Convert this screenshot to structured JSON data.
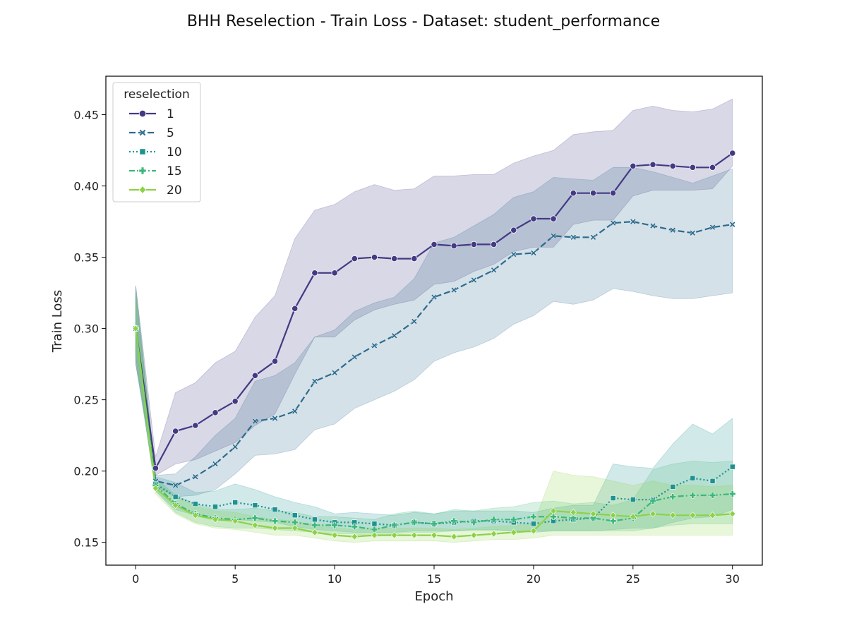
{
  "chart_data": {
    "type": "line",
    "title": "BHH Reselection - Train Loss - Dataset: student_performance",
    "xlabel": "Epoch",
    "ylabel": "Train Loss",
    "xlim": [
      -1.5,
      31.5
    ],
    "ylim": [
      0.134,
      0.477
    ],
    "x_ticks": [
      "0",
      "5",
      "10",
      "15",
      "20",
      "25",
      "30"
    ],
    "y_ticks": [
      "0.15",
      "0.20",
      "0.25",
      "0.30",
      "0.35",
      "0.40",
      "0.45"
    ],
    "grid": false,
    "legend": {
      "title": "reselection",
      "placement": "top-left"
    },
    "x": [
      0,
      1,
      2,
      3,
      4,
      5,
      6,
      7,
      8,
      9,
      10,
      11,
      12,
      13,
      14,
      15,
      16,
      17,
      18,
      19,
      20,
      21,
      22,
      23,
      24,
      25,
      26,
      27,
      28,
      29,
      30
    ],
    "series": [
      {
        "name": "1",
        "color": "#433a83",
        "marker": "circle",
        "dash": "solid",
        "values": [
          0.3,
          0.202,
          0.228,
          0.232,
          0.241,
          0.249,
          0.267,
          0.277,
          0.314,
          0.339,
          0.339,
          0.349,
          0.35,
          0.349,
          0.349,
          0.359,
          0.358,
          0.359,
          0.359,
          0.369,
          0.377,
          0.377,
          0.395,
          0.395,
          0.395,
          0.414,
          0.415,
          0.414,
          0.413,
          0.413,
          0.423
        ],
        "lower": [
          0.275,
          0.197,
          0.205,
          0.208,
          0.214,
          0.22,
          0.232,
          0.24,
          0.268,
          0.294,
          0.294,
          0.306,
          0.313,
          0.317,
          0.32,
          0.331,
          0.333,
          0.34,
          0.345,
          0.354,
          0.357,
          0.357,
          0.373,
          0.376,
          0.376,
          0.393,
          0.397,
          0.397,
          0.397,
          0.398,
          0.414
        ],
        "upper": [
          0.33,
          0.21,
          0.255,
          0.262,
          0.276,
          0.284,
          0.308,
          0.323,
          0.363,
          0.383,
          0.387,
          0.396,
          0.401,
          0.397,
          0.398,
          0.407,
          0.407,
          0.408,
          0.408,
          0.416,
          0.421,
          0.425,
          0.436,
          0.438,
          0.439,
          0.453,
          0.456,
          0.453,
          0.452,
          0.454,
          0.461
        ]
      },
      {
        "name": "5",
        "color": "#2c6b8e",
        "marker": "x",
        "dash": "dashed",
        "values": [
          0.3,
          0.193,
          0.19,
          0.196,
          0.205,
          0.217,
          0.235,
          0.237,
          0.242,
          0.263,
          0.269,
          0.28,
          0.288,
          0.295,
          0.305,
          0.322,
          0.327,
          0.334,
          0.341,
          0.352,
          0.353,
          0.365,
          0.364,
          0.364,
          0.374,
          0.375,
          0.372,
          0.369,
          0.367,
          0.371,
          0.373
        ],
        "lower": [
          0.275,
          0.189,
          0.182,
          0.183,
          0.187,
          0.198,
          0.211,
          0.212,
          0.215,
          0.229,
          0.233,
          0.244,
          0.25,
          0.256,
          0.264,
          0.277,
          0.283,
          0.287,
          0.293,
          0.303,
          0.309,
          0.319,
          0.317,
          0.32,
          0.328,
          0.326,
          0.323,
          0.321,
          0.321,
          0.323,
          0.325
        ],
        "upper": [
          0.33,
          0.197,
          0.198,
          0.21,
          0.225,
          0.237,
          0.263,
          0.267,
          0.276,
          0.294,
          0.299,
          0.312,
          0.318,
          0.322,
          0.335,
          0.36,
          0.364,
          0.372,
          0.38,
          0.392,
          0.396,
          0.406,
          0.405,
          0.404,
          0.413,
          0.413,
          0.41,
          0.406,
          0.402,
          0.407,
          0.412
        ]
      },
      {
        "name": "10",
        "color": "#1f9290",
        "marker": "square",
        "dash": "dotted",
        "values": [
          0.3,
          0.191,
          0.182,
          0.177,
          0.175,
          0.178,
          0.176,
          0.173,
          0.169,
          0.166,
          0.164,
          0.164,
          0.163,
          0.162,
          0.164,
          0.163,
          0.164,
          0.165,
          0.165,
          0.164,
          0.163,
          0.165,
          0.166,
          0.167,
          0.181,
          0.18,
          0.18,
          0.189,
          0.195,
          0.193,
          0.203
        ],
        "lower": [
          0.28,
          0.186,
          0.173,
          0.169,
          0.166,
          0.166,
          0.165,
          0.164,
          0.161,
          0.159,
          0.158,
          0.157,
          0.157,
          0.157,
          0.158,
          0.158,
          0.158,
          0.159,
          0.159,
          0.158,
          0.157,
          0.158,
          0.158,
          0.158,
          0.159,
          0.16,
          0.16,
          0.164,
          0.167,
          0.168,
          0.173
        ],
        "upper": [
          0.325,
          0.196,
          0.192,
          0.185,
          0.186,
          0.191,
          0.187,
          0.182,
          0.178,
          0.175,
          0.17,
          0.171,
          0.17,
          0.169,
          0.171,
          0.17,
          0.172,
          0.172,
          0.172,
          0.172,
          0.171,
          0.174,
          0.176,
          0.176,
          0.205,
          0.203,
          0.202,
          0.219,
          0.233,
          0.226,
          0.237
        ]
      },
      {
        "name": "15",
        "color": "#3bb77a",
        "marker": "plus",
        "dash": "dashdot",
        "values": [
          0.3,
          0.19,
          0.177,
          0.17,
          0.167,
          0.166,
          0.167,
          0.165,
          0.164,
          0.162,
          0.162,
          0.161,
          0.159,
          0.162,
          0.164,
          0.163,
          0.165,
          0.164,
          0.166,
          0.166,
          0.168,
          0.168,
          0.167,
          0.167,
          0.165,
          0.167,
          0.179,
          0.182,
          0.183,
          0.183,
          0.184
        ],
        "lower": [
          0.28,
          0.186,
          0.171,
          0.164,
          0.161,
          0.16,
          0.16,
          0.159,
          0.158,
          0.157,
          0.156,
          0.156,
          0.154,
          0.156,
          0.157,
          0.157,
          0.158,
          0.158,
          0.158,
          0.158,
          0.158,
          0.158,
          0.158,
          0.158,
          0.158,
          0.158,
          0.16,
          0.162,
          0.163,
          0.163,
          0.163
        ],
        "upper": [
          0.325,
          0.195,
          0.183,
          0.177,
          0.173,
          0.173,
          0.174,
          0.172,
          0.171,
          0.168,
          0.168,
          0.167,
          0.166,
          0.17,
          0.172,
          0.17,
          0.173,
          0.172,
          0.174,
          0.175,
          0.178,
          0.179,
          0.177,
          0.178,
          0.176,
          0.18,
          0.201,
          0.205,
          0.207,
          0.206,
          0.207
        ]
      },
      {
        "name": "20",
        "color": "#8dd147",
        "marker": "diamond",
        "dash": "solid",
        "values": [
          0.3,
          0.188,
          0.176,
          0.169,
          0.166,
          0.165,
          0.162,
          0.16,
          0.16,
          0.157,
          0.155,
          0.154,
          0.155,
          0.155,
          0.155,
          0.155,
          0.154,
          0.155,
          0.156,
          0.157,
          0.158,
          0.172,
          0.171,
          0.17,
          0.169,
          0.168,
          0.17,
          0.169,
          0.169,
          0.169,
          0.17
        ],
        "lower": [
          0.28,
          0.184,
          0.17,
          0.163,
          0.16,
          0.159,
          0.157,
          0.155,
          0.155,
          0.153,
          0.151,
          0.15,
          0.151,
          0.151,
          0.151,
          0.151,
          0.15,
          0.151,
          0.152,
          0.152,
          0.153,
          0.155,
          0.155,
          0.155,
          0.155,
          0.155,
          0.155,
          0.155,
          0.155,
          0.155,
          0.155
        ],
        "upper": [
          0.325,
          0.193,
          0.182,
          0.175,
          0.172,
          0.171,
          0.168,
          0.166,
          0.165,
          0.162,
          0.16,
          0.159,
          0.16,
          0.16,
          0.16,
          0.16,
          0.159,
          0.16,
          0.161,
          0.162,
          0.163,
          0.2,
          0.197,
          0.196,
          0.193,
          0.19,
          0.193,
          0.19,
          0.19,
          0.189,
          0.19
        ]
      }
    ]
  }
}
